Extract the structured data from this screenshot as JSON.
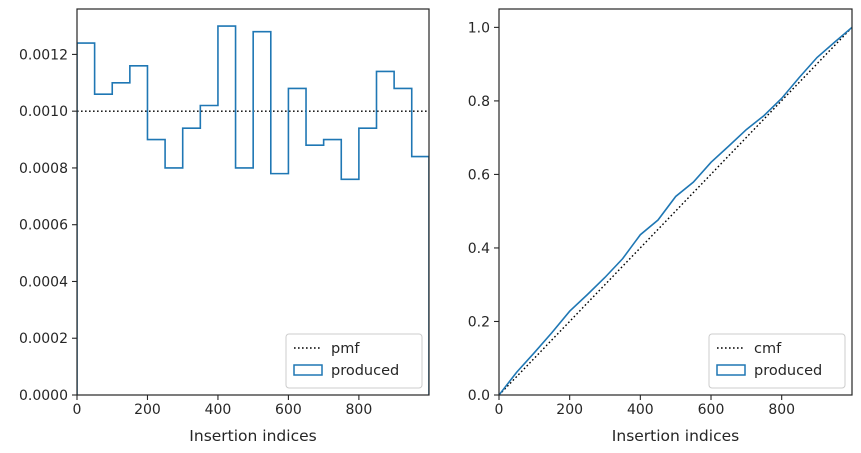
{
  "chart_data": [
    {
      "type": "step",
      "xlabel": "Insertion indices",
      "ylabel": "",
      "xlim": [
        0,
        999
      ],
      "ylim": [
        0,
        0.00136
      ],
      "x_ticks": [
        {
          "value": 0,
          "label": "0"
        },
        {
          "value": 200,
          "label": "200"
        },
        {
          "value": 400,
          "label": "400"
        },
        {
          "value": 600,
          "label": "600"
        },
        {
          "value": 800,
          "label": "800"
        }
      ],
      "y_ticks": [
        {
          "value": 0,
          "label": "0.0000"
        },
        {
          "value": 0.0002,
          "label": "0.0002"
        },
        {
          "value": 0.0004,
          "label": "0.0004"
        },
        {
          "value": 0.0006,
          "label": "0.0006"
        },
        {
          "value": 0.0008,
          "label": "0.0008"
        },
        {
          "value": 0.001,
          "label": "0.0010"
        },
        {
          "value": 0.0012,
          "label": "0.0012"
        }
      ],
      "legend": {
        "position": "lower right",
        "entries": [
          "pmf",
          "produced"
        ]
      },
      "series": [
        {
          "name": "pmf",
          "style": "dotted",
          "color": "#000000",
          "x": [
            0,
            999
          ],
          "y": [
            0.001,
            0.001
          ]
        },
        {
          "name": "produced",
          "style": "step-histogram",
          "color": "#1f77b4",
          "bin_edges": [
            0,
            50,
            100,
            150,
            200,
            250,
            300,
            350,
            400,
            450,
            500,
            550,
            600,
            650,
            700,
            750,
            800,
            850,
            900,
            950,
            999
          ],
          "values": [
            0.00124,
            0.00106,
            0.0011,
            0.00116,
            0.0009,
            0.0008,
            0.00094,
            0.00102,
            0.0013,
            0.0008,
            0.00128,
            0.00078,
            0.00108,
            0.00088,
            0.0009,
            0.00076,
            0.00094,
            0.00114,
            0.00108,
            0.00084
          ]
        }
      ]
    },
    {
      "type": "line",
      "xlabel": "Insertion indices",
      "ylabel": "",
      "xlim": [
        0,
        999
      ],
      "ylim": [
        0,
        1.05
      ],
      "x_ticks": [
        {
          "value": 0,
          "label": "0"
        },
        {
          "value": 200,
          "label": "200"
        },
        {
          "value": 400,
          "label": "400"
        },
        {
          "value": 600,
          "label": "600"
        },
        {
          "value": 800,
          "label": "800"
        }
      ],
      "y_ticks": [
        {
          "value": 0,
          "label": "0.0"
        },
        {
          "value": 0.2,
          "label": "0.2"
        },
        {
          "value": 0.4,
          "label": "0.4"
        },
        {
          "value": 0.6,
          "label": "0.6"
        },
        {
          "value": 0.8,
          "label": "0.8"
        },
        {
          "value": 1.0,
          "label": "1.0"
        }
      ],
      "legend": {
        "position": "lower right",
        "entries": [
          "cmf",
          "produced"
        ]
      },
      "series": [
        {
          "name": "cmf",
          "style": "dotted",
          "color": "#000000",
          "x": [
            0,
            999
          ],
          "y": [
            0,
            1.0
          ]
        },
        {
          "name": "produced",
          "style": "line",
          "color": "#1f77b4",
          "x": [
            0,
            50,
            100,
            150,
            200,
            250,
            300,
            350,
            400,
            450,
            500,
            550,
            600,
            650,
            700,
            750,
            800,
            850,
            900,
            950,
            999
          ],
          "y": [
            0,
            0.062,
            0.115,
            0.17,
            0.228,
            0.273,
            0.32,
            0.371,
            0.436,
            0.476,
            0.54,
            0.579,
            0.633,
            0.677,
            0.722,
            0.76,
            0.807,
            0.864,
            0.918,
            0.96,
            1.0
          ]
        }
      ]
    }
  ]
}
